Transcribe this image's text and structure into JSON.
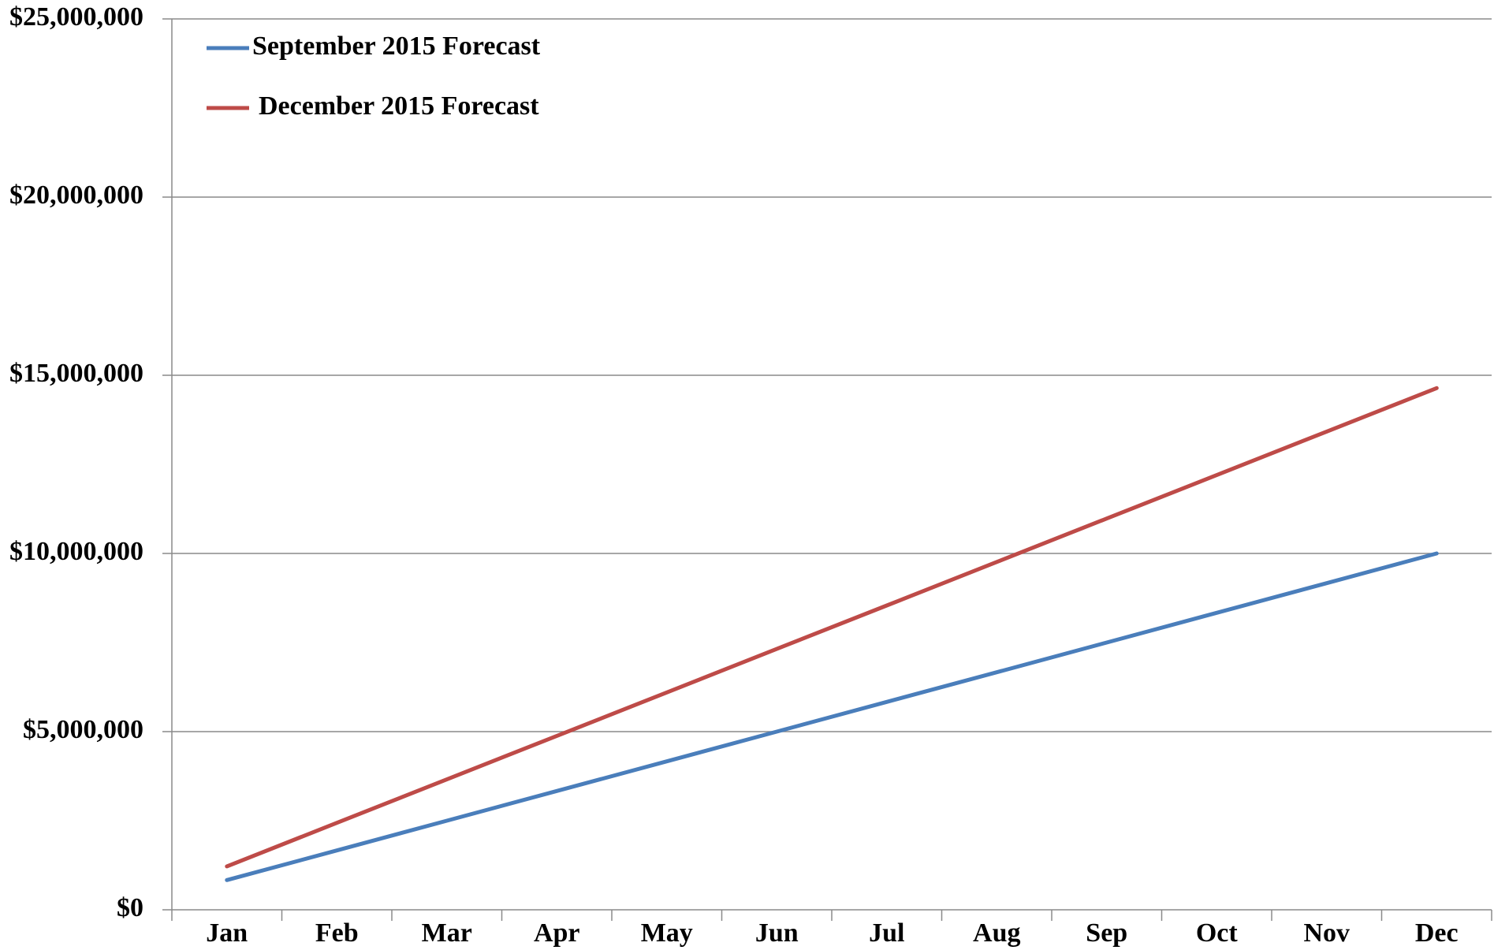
{
  "chart_data": {
    "type": "line",
    "categories": [
      "Jan",
      "Feb",
      "Mar",
      "Apr",
      "May",
      "Jun",
      "Jul",
      "Aug",
      "Sep",
      "Oct",
      "Nov",
      "Dec"
    ],
    "series": [
      {
        "name": "September 2015 Forecast",
        "color": "#4a7ebb",
        "values": [
          833333,
          1666667,
          2500000,
          3333333,
          4166667,
          5000000,
          5833333,
          6666667,
          7500000,
          8333333,
          9166667,
          10000000
        ]
      },
      {
        "name": "December 2015 Forecast",
        "color": "#be4b48",
        "values": [
          1220000,
          2440000,
          3660000,
          4880000,
          6100000,
          7320000,
          8540000,
          9760000,
          10980000,
          12200000,
          13420000,
          14640000
        ]
      }
    ],
    "ylim": [
      0,
      25000000
    ],
    "yticks": [
      {
        "value": 0,
        "label": "$0"
      },
      {
        "value": 5000000,
        "label": "$5,000,000"
      },
      {
        "value": 10000000,
        "label": "$10,000,000"
      },
      {
        "value": 15000000,
        "label": "$15,000,000"
      },
      {
        "value": 20000000,
        "label": "$20,000,000"
      },
      {
        "value": 25000000,
        "label": "$25,000,000"
      }
    ],
    "grid": true,
    "legend": "top-left"
  }
}
